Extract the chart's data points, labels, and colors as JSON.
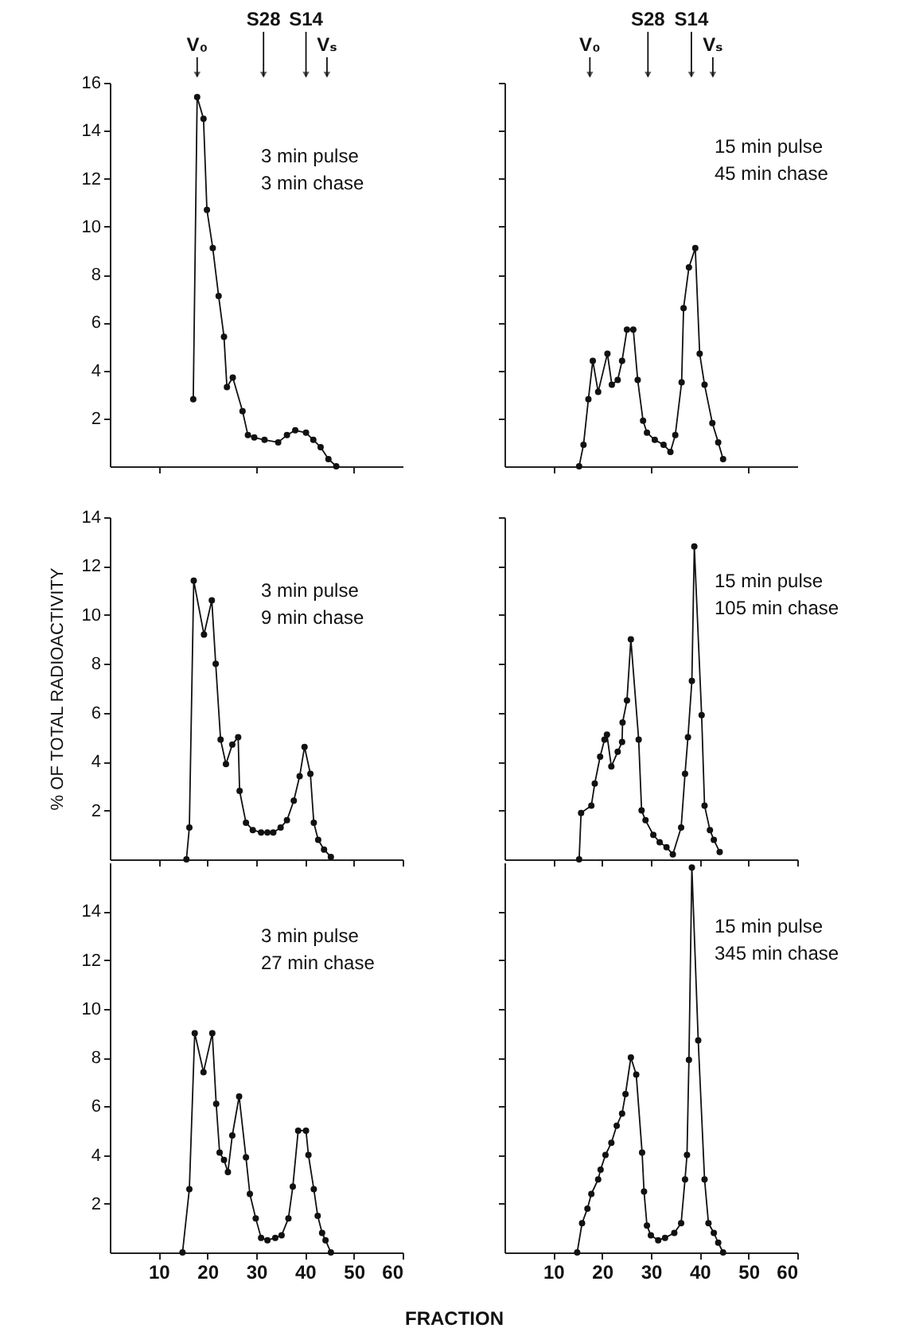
{
  "chart_data": [
    {
      "type": "line",
      "title": "3 min pulse",
      "subtitle": "3 min chase",
      "color": "#111111",
      "marker": "circle",
      "xlim": [
        0,
        60
      ],
      "xticks": [
        10,
        20,
        30,
        40,
        50,
        60
      ],
      "ylim": [
        0,
        16
      ],
      "yticks": [
        2,
        4,
        6,
        8,
        10,
        12,
        14,
        16
      ],
      "tick_labels": "y",
      "ref_lines": [
        {
          "axis": "x",
          "value": 17.9,
          "label": "V₀"
        },
        {
          "axis": "x",
          "value": 31.5,
          "label": "S28"
        },
        {
          "axis": "x",
          "value": 40.2,
          "label": "S14"
        },
        {
          "axis": "x",
          "value": 44.5,
          "label": "Vₛ"
        }
      ],
      "x": [
        17.1,
        17.9,
        19.2,
        19.9,
        21.1,
        22.3,
        23.4,
        24.0,
        25.2,
        27.2,
        28.3,
        29.6,
        31.7,
        34.5,
        36.3,
        38.0,
        40.2,
        41.7,
        43.2,
        44.8,
        46.4
      ],
      "values": [
        2.8,
        15.4,
        14.5,
        10.7,
        9.1,
        7.1,
        5.4,
        3.3,
        3.7,
        2.3,
        1.3,
        1.2,
        1.1,
        1.0,
        1.3,
        1.5,
        1.4,
        1.1,
        0.8,
        0.3,
        0
      ]
    },
    {
      "type": "line",
      "title": "15 min pulse",
      "subtitle": "45 min chase",
      "color": "#111111",
      "marker": "circle",
      "xlim": [
        0,
        60
      ],
      "xticks": [
        10,
        20,
        30,
        40,
        50,
        60
      ],
      "ylim": [
        0,
        16
      ],
      "yticks": [
        2,
        4,
        6,
        8,
        10,
        12,
        14,
        16
      ],
      "tick_labels": false,
      "ref_lines": [
        {
          "axis": "x",
          "value": 17.5,
          "label": "V₀"
        },
        {
          "axis": "x",
          "value": 29.4,
          "label": "S28"
        },
        {
          "axis": "x",
          "value": 38.3,
          "label": "S14"
        },
        {
          "axis": "x",
          "value": 42.7,
          "label": "Vₛ"
        }
      ],
      "x": [
        15.3,
        16.2,
        17.2,
        18.1,
        19.2,
        21.1,
        22.0,
        23.2,
        24.1,
        25.1,
        26.4,
        27.3,
        28.4,
        29.2,
        30.8,
        32.6,
        34.0,
        35.0,
        36.3,
        36.7,
        37.8,
        39.1,
        40.0,
        41.0,
        42.6,
        43.8,
        44.8
      ],
      "values": [
        0,
        0.9,
        2.8,
        4.4,
        3.1,
        4.7,
        3.4,
        3.6,
        4.4,
        5.7,
        5.7,
        3.6,
        1.9,
        1.4,
        1.1,
        0.9,
        0.6,
        1.3,
        3.5,
        6.6,
        8.3,
        9.1,
        4.7,
        3.4,
        1.8,
        1.0,
        0.3
      ]
    },
    {
      "type": "line",
      "title": "3 min pulse",
      "subtitle": "9 min chase",
      "ylabel": "% OF TOTAL RADIOACTIVITY",
      "color": "#111111",
      "marker": "circle",
      "xlim": [
        0,
        60
      ],
      "xticks": [
        10,
        20,
        30,
        40,
        50,
        60
      ],
      "ylim": [
        0,
        14
      ],
      "yticks": [
        2,
        4,
        6,
        8,
        10,
        12,
        14
      ],
      "tick_labels": "y",
      "x": [
        15.7,
        16.3,
        17.2,
        19.3,
        20.9,
        21.7,
        22.7,
        23.8,
        25.1,
        26.3,
        26.6,
        27.9,
        29.3,
        31.0,
        32.3,
        33.5,
        35.0,
        36.3,
        37.7,
        38.9,
        39.9,
        41.1,
        41.8,
        42.7,
        43.9,
        45.3
      ],
      "values": [
        0,
        1.3,
        11.4,
        9.2,
        10.6,
        8.0,
        4.9,
        3.9,
        4.7,
        5.0,
        2.8,
        1.5,
        1.2,
        1.1,
        1.1,
        1.1,
        1.3,
        1.6,
        2.4,
        3.4,
        4.6,
        3.5,
        1.5,
        0.8,
        0.4,
        0.1
      ]
    },
    {
      "type": "line",
      "title": "15 min pulse",
      "subtitle": "105 min chase",
      "color": "#111111",
      "marker": "circle",
      "xlim": [
        0,
        60
      ],
      "xticks": [
        10,
        20,
        30,
        40,
        50,
        60
      ],
      "ylim": [
        0,
        14
      ],
      "yticks": [
        2,
        4,
        6,
        8,
        10,
        12,
        14
      ],
      "tick_labels": false,
      "x": [
        15.3,
        15.7,
        17.8,
        18.5,
        19.6,
        20.5,
        21.0,
        21.9,
        23.2,
        24.1,
        24.2,
        25.1,
        25.9,
        27.5,
        28.1,
        28.9,
        30.5,
        31.8,
        33.2,
        34.5,
        36.2,
        37.0,
        37.6,
        38.4,
        38.9,
        40.4,
        41.0,
        42.1,
        42.9,
        44.1
      ],
      "values": [
        0,
        1.9,
        2.2,
        3.1,
        4.2,
        4.9,
        5.1,
        3.8,
        4.4,
        4.8,
        5.6,
        6.5,
        9.0,
        4.9,
        2.0,
        1.6,
        1.0,
        0.7,
        0.5,
        0.2,
        1.3,
        3.5,
        5.0,
        7.3,
        12.8,
        5.9,
        2.2,
        1.2,
        0.8,
        0.3
      ]
    },
    {
      "type": "line",
      "title": "3 min pulse",
      "subtitle": "27 min chase",
      "xlabel": "FRACTION",
      "color": "#111111",
      "marker": "circle",
      "xlim": [
        0,
        60
      ],
      "xticks": [
        10,
        20,
        30,
        40,
        50,
        60
      ],
      "ylim": [
        0,
        16
      ],
      "yticks": [
        2,
        4,
        6,
        8,
        10,
        12,
        14
      ],
      "x": [
        14.9,
        16.3,
        17.4,
        19.2,
        21.0,
        21.8,
        22.5,
        23.4,
        24.2,
        25.1,
        26.5,
        27.9,
        28.7,
        29.9,
        31.0,
        32.3,
        33.9,
        35.2,
        36.6,
        37.5,
        38.6,
        40.2,
        40.7,
        41.8,
        42.6,
        43.5,
        44.2,
        45.3
      ],
      "values": [
        0,
        2.6,
        9.0,
        7.4,
        9.0,
        6.1,
        4.1,
        3.8,
        3.3,
        4.8,
        6.4,
        3.9,
        2.4,
        1.4,
        0.6,
        0.5,
        0.6,
        0.7,
        1.4,
        2.7,
        5.0,
        5.0,
        4.0,
        2.6,
        1.5,
        0.8,
        0.5,
        0
      ]
    },
    {
      "type": "line",
      "title": "15 min pulse",
      "subtitle": "345 min chase",
      "color": "#111111",
      "marker": "circle",
      "xlim": [
        0,
        60
      ],
      "xticks": [
        10,
        20,
        30,
        40,
        50,
        60
      ],
      "ylim": [
        0,
        16
      ],
      "yticks": [
        2,
        4,
        6,
        8,
        10,
        12,
        14
      ],
      "tick_labels": "x",
      "x": [
        14.9,
        15.9,
        17.0,
        17.8,
        19.2,
        19.7,
        20.7,
        21.9,
        23.0,
        24.1,
        24.8,
        25.9,
        27.0,
        28.2,
        28.6,
        29.2,
        30.0,
        31.5,
        32.9,
        34.8,
        36.2,
        37.0,
        37.4,
        37.8,
        38.4,
        39.7,
        41.0,
        41.8,
        42.9,
        43.8,
        44.8
      ],
      "values": [
        0,
        1.2,
        1.8,
        2.4,
        3.0,
        3.4,
        4.0,
        4.5,
        5.2,
        5.7,
        6.5,
        8.0,
        7.3,
        4.1,
        2.5,
        1.1,
        0.7,
        0.5,
        0.6,
        0.8,
        1.2,
        3.0,
        4.0,
        7.9,
        15.8,
        8.7,
        3.0,
        1.2,
        0.8,
        0.4,
        0
      ]
    }
  ]
}
